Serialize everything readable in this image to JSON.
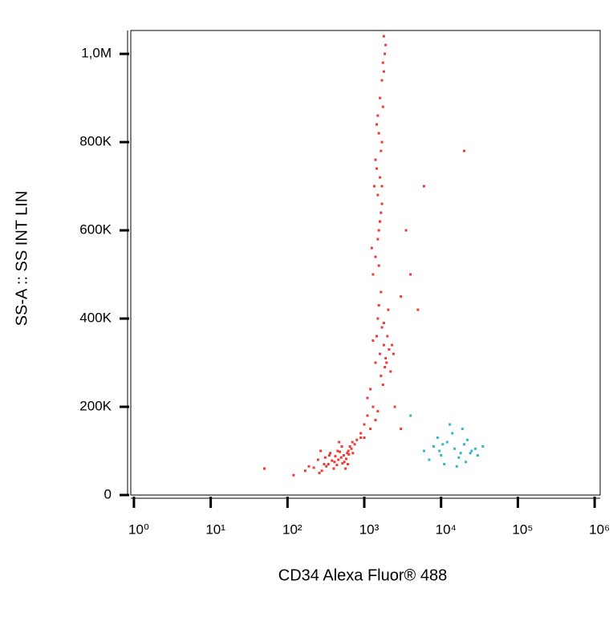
{
  "chart_data": {
    "type": "scatter",
    "xlabel": "CD34 Alexa Fluor® 488",
    "ylabel": "SS-A :: SS INT LIN",
    "xscale": "log",
    "xlim": [
      0.91,
      1180000
    ],
    "ylim": [
      0,
      1053000
    ],
    "xticks": [
      {
        "value": 1,
        "label": "10⁰"
      },
      {
        "value": 10,
        "label": "10¹"
      },
      {
        "value": 100,
        "label": "10²"
      },
      {
        "value": 1000,
        "label": "10³"
      },
      {
        "value": 10000,
        "label": "10⁴"
      },
      {
        "value": 100000,
        "label": "10⁵"
      },
      {
        "value": 1000000,
        "label": "10⁶"
      }
    ],
    "yticks": [
      0,
      {
        "value": 200000,
        "label": "200K"
      },
      {
        "value": 400000,
        "label": "400K"
      },
      {
        "value": 600000,
        "label": "600K"
      },
      {
        "value": 800000,
        "label": "800K"
      },
      {
        "value": 1000000,
        "label": "1,0M"
      }
    ],
    "series": [
      {
        "color": "#ee3a33",
        "x": [
          250,
          300,
          350,
          400,
          450,
          500,
          550,
          600,
          650,
          700,
          280,
          320,
          380,
          420,
          480,
          520,
          580,
          630,
          680,
          750,
          220,
          260,
          340,
          460,
          540,
          620,
          800,
          900,
          360,
          440,
          310,
          410,
          510,
          610,
          710,
          190,
          170,
          270,
          470,
          570,
          900,
          1000,
          1100,
          1200,
          1300,
          1100,
          1400,
          1000,
          1200,
          1500,
          1400,
          1600,
          1800,
          2000,
          2200,
          1500,
          1700,
          1900,
          2100,
          1300,
          1650,
          1850,
          2050,
          1450,
          1750,
          1950,
          2300,
          1550,
          1800,
          2400,
          1300,
          1400,
          1500,
          1600,
          1700,
          1350,
          1450,
          1550,
          1650,
          1250,
          1500,
          1600,
          1400,
          1700,
          1550,
          1450,
          1650,
          1500,
          1750,
          1600,
          1550,
          1650,
          1700,
          1800,
          1750,
          1850,
          1600,
          1700,
          1900,
          1800,
          3000,
          3500,
          4000,
          5000,
          6000,
          2500,
          3000,
          50,
          120,
          20000
        ],
        "values": [
          80000,
          70000,
          90000,
          60000,
          100000,
          85000,
          75000,
          95000,
          110000,
          120000,
          55000,
          65000,
          78000,
          88000,
          98000,
          72000,
          82000,
          92000,
          105000,
          115000,
          62000,
          50000,
          70000,
          80000,
          90000,
          100000,
          125000,
          130000,
          95000,
          68000,
          85000,
          75000,
          110000,
          70000,
          95000,
          65000,
          55000,
          100000,
          120000,
          60000,
          140000,
          160000,
          180000,
          150000,
          200000,
          220000,
          170000,
          130000,
          240000,
          190000,
          300000,
          320000,
          340000,
          360000,
          280000,
          400000,
          380000,
          310000,
          330000,
          350000,
          270000,
          290000,
          420000,
          360000,
          250000,
          300000,
          340000,
          430000,
          390000,
          320000,
          500000,
          540000,
          580000,
          620000,
          660000,
          700000,
          740000,
          600000,
          640000,
          560000,
          680000,
          720000,
          760000,
          800000,
          820000,
          840000,
          780000,
          860000,
          880000,
          900000,
          520000,
          460000,
          940000,
          960000,
          980000,
          1000000,
          620000,
          700000,
          1020000,
          1040000,
          450000,
          600000,
          500000,
          420000,
          700000,
          200000,
          150000,
          60000,
          45000,
          780000
        ]
      },
      {
        "color": "#35b5cc",
        "x": [
          6000,
          8000,
          10000,
          12000,
          15000,
          18000,
          20000,
          25000,
          30000,
          35000,
          7000,
          9000,
          11000,
          14000,
          17000,
          22000,
          28000,
          13000,
          16000,
          19000,
          24000,
          10500,
          21000,
          4000,
          9500
        ],
        "values": [
          100000,
          110000,
          90000,
          120000,
          105000,
          95000,
          115000,
          100000,
          90000,
          110000,
          80000,
          130000,
          70000,
          140000,
          85000,
          125000,
          105000,
          160000,
          65000,
          150000,
          95000,
          115000,
          75000,
          180000,
          100000
        ]
      }
    ]
  }
}
